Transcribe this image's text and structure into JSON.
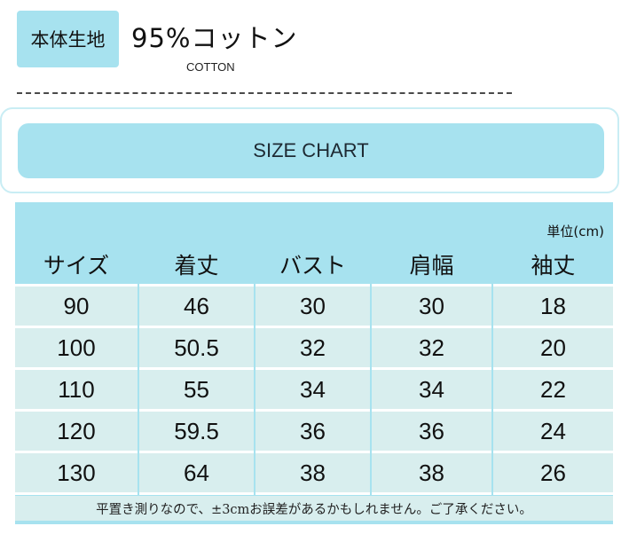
{
  "material": {
    "label": "本体生地",
    "value": "95%コットン",
    "sub": "COTTON"
  },
  "title": "SIZE CHART",
  "unit": "単位(cm)",
  "headers": [
    "サイズ",
    "着丈",
    "バスト",
    "肩幅",
    "袖丈"
  ],
  "rows": [
    [
      "90",
      "46",
      "30",
      "30",
      "18"
    ],
    [
      "100",
      "50.5",
      "32",
      "32",
      "20"
    ],
    [
      "110",
      "55",
      "34",
      "34",
      "22"
    ],
    [
      "120",
      "59.5",
      "36",
      "36",
      "24"
    ],
    [
      "130",
      "64",
      "38",
      "38",
      "26"
    ]
  ],
  "note": "平置き測りなので、±3cmお誤差があるかもしれません。ご了承ください。",
  "colors": {
    "accent": "#a7e2ef",
    "cell": "#d8eeee"
  }
}
